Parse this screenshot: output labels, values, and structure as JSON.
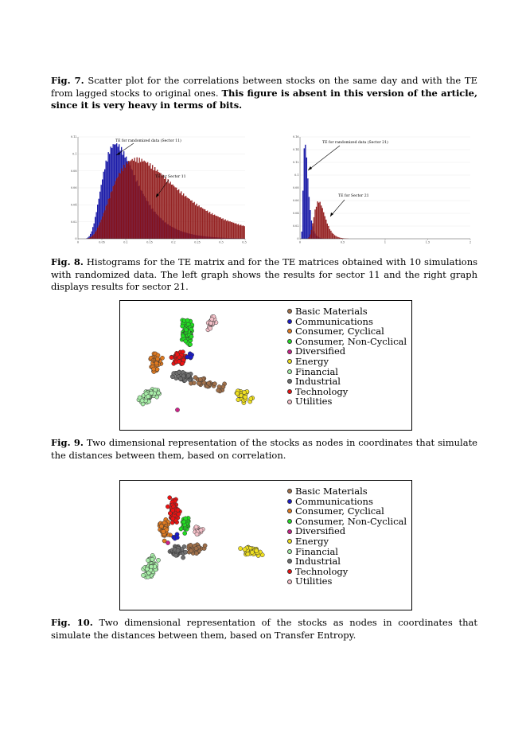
{
  "fig7": {
    "label": "Fig. 7.",
    "text": " Scatter plot for the correlations between stocks on the same day and with the TE from lagged stocks to original ones. ",
    "bold_text": "This figure is absent in this version of the article, since it is very heavy in terms of bits."
  },
  "fig8": {
    "label": "Fig. 8.",
    "text": " Histograms for the TE matrix and for the TE matrices obtained with 10 simulations with randomized data. The left graph shows the results for sector 11 and the right graph displays results for sector 21."
  },
  "fig9": {
    "label": "Fig. 9.",
    "text": " Two dimensional representation of the stocks as nodes in coordinates that simulate the distances between them, based on correlation."
  },
  "fig10": {
    "label": "Fig. 10.",
    "text": " Two dimensional representation of the stocks as nodes in coordinates that simulate the distances between them, based on Transfer Entropy."
  },
  "legend": [
    {
      "label": "Basic Materials",
      "color": "#a0704a"
    },
    {
      "label": "Communications",
      "color": "#1a1acc"
    },
    {
      "label": "Consumer, Cyclical",
      "color": "#e07a20"
    },
    {
      "label": "Consumer, Non-Cyclical",
      "color": "#22dd22"
    },
    {
      "label": "Diversified",
      "color": "#cc2288"
    },
    {
      "label": "Energy",
      "color": "#f0e020"
    },
    {
      "label": "Financial",
      "color": "#a8eea8"
    },
    {
      "label": "Industrial",
      "color": "#707070"
    },
    {
      "label": "Technology",
      "color": "#ee1111"
    },
    {
      "label": "Utilities",
      "color": "#f4c0c8"
    }
  ],
  "chart_data": [
    {
      "type": "bar",
      "id": "hist-left",
      "annotations": [
        "TE for randomized data (Sector 11)",
        "TE for Sector 11"
      ],
      "xticks": [
        "0",
        "0.05",
        "0.1",
        "0.15",
        "0.2",
        "0.25",
        "0.3",
        "0.35"
      ],
      "yticks": [
        "0.12",
        "0.1",
        "0.08",
        "0.06",
        "0.04",
        "0.02",
        "0"
      ],
      "xlim": [
        0,
        0.4
      ],
      "ylim": [
        0,
        0.12
      ],
      "series": [
        {
          "color": "#1c1ca8",
          "center": 0.09,
          "width": 0.045,
          "peak": 0.114
        },
        {
          "color": "#8c1010",
          "center": 0.14,
          "width": 0.085,
          "peak": 0.096
        }
      ]
    },
    {
      "type": "bar",
      "id": "hist-right",
      "annotations": [
        "TE for randomized data (Sector 21)",
        "TE for Sector 21"
      ],
      "xticks": [
        "0",
        "0.5",
        "1",
        "1.5",
        "2"
      ],
      "yticks": [
        "0.16",
        "0.14",
        "0.12",
        "0.1",
        "0.08",
        "0.06",
        "0.04",
        "0.02",
        "0"
      ],
      "xlim": [
        0,
        2
      ],
      "ylim": [
        0,
        0.16
      ],
      "series": [
        {
          "color": "#1c1ca8",
          "center": 0.06,
          "width": 0.03,
          "peak": 0.155
        },
        {
          "color": "#8c1010",
          "center": 0.22,
          "width": 0.07,
          "peak": 0.06
        }
      ]
    }
  ]
}
